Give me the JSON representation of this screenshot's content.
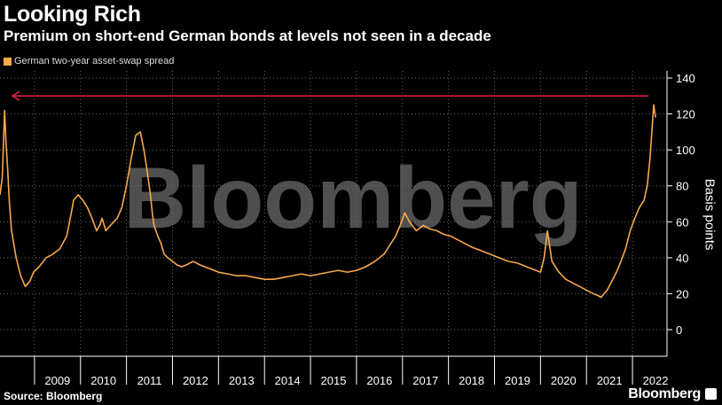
{
  "chart_data": {
    "type": "line",
    "title": "Looking Rich",
    "subtitle": "Premium on short-end German bonds at levels not seen in a decade",
    "legend": [
      "German two-year asset-swap spread"
    ],
    "ylabel": "Basis points",
    "ylim": [
      -10,
      142
    ],
    "y_ticks": [
      0,
      20,
      40,
      60,
      80,
      100,
      120,
      140
    ],
    "x_ticks": [
      "2009",
      "2010",
      "2011",
      "2012",
      "2013",
      "2014",
      "2015",
      "2016",
      "2017",
      "2018",
      "2019",
      "2020",
      "2021",
      "2022"
    ],
    "xlim": [
      2008.25,
      2022.75
    ],
    "series": [
      {
        "name": "German two-year asset-swap spread",
        "color": "#f7a84a",
        "x": [
          2008.25,
          2008.3,
          2008.35,
          2008.38,
          2008.42,
          2008.45,
          2008.5,
          2008.6,
          2008.7,
          2008.8,
          2008.9,
          2008.98,
          2009.1,
          2009.25,
          2009.4,
          2009.55,
          2009.7,
          2009.8,
          2009.85,
          2009.95,
          2010.05,
          2010.15,
          2010.25,
          2010.35,
          2010.42,
          2010.47,
          2010.55,
          2010.65,
          2010.8,
          2010.9,
          2011.0,
          2011.1,
          2011.2,
          2011.3,
          2011.38,
          2011.45,
          2011.52,
          2011.56,
          2011.6,
          2011.68,
          2011.75,
          2011.82,
          2011.9,
          2012.0,
          2012.1,
          2012.2,
          2012.3,
          2012.45,
          2012.6,
          2012.8,
          2013.0,
          2013.2,
          2013.4,
          2013.6,
          2013.8,
          2014.0,
          2014.2,
          2014.4,
          2014.6,
          2014.8,
          2015.0,
          2015.2,
          2015.4,
          2015.6,
          2015.8,
          2016.0,
          2016.2,
          2016.4,
          2016.6,
          2016.75,
          2016.85,
          2016.95,
          2017.05,
          2017.15,
          2017.3,
          2017.45,
          2017.6,
          2017.75,
          2017.9,
          2018.05,
          2018.2,
          2018.35,
          2018.5,
          2018.7,
          2018.9,
          2019.1,
          2019.3,
          2019.5,
          2019.7,
          2019.9,
          2020.0,
          2020.08,
          2020.15,
          2020.25,
          2020.4,
          2020.55,
          2020.7,
          2020.85,
          2021.0,
          2021.15,
          2021.25,
          2021.32,
          2021.38,
          2021.45,
          2021.55,
          2021.65,
          2021.75,
          2021.85,
          2021.95,
          2022.05,
          2022.15,
          2022.25,
          2022.32,
          2022.38,
          2022.42,
          2022.46,
          2022.5
        ],
        "values": [
          75,
          85,
          122,
          105,
          88,
          72,
          55,
          40,
          30,
          24,
          27,
          32,
          35,
          40,
          42,
          45,
          52,
          65,
          72,
          75,
          72,
          68,
          62,
          55,
          58,
          62,
          55,
          58,
          62,
          68,
          80,
          95,
          108,
          110,
          100,
          88,
          75,
          65,
          58,
          52,
          48,
          42,
          40,
          38,
          36,
          35,
          36,
          38,
          36,
          34,
          32,
          31,
          30,
          30,
          29,
          28,
          28,
          29,
          30,
          31,
          30,
          31,
          32,
          33,
          32,
          33,
          35,
          38,
          42,
          48,
          52,
          58,
          65,
          60,
          55,
          58,
          56,
          55,
          53,
          52,
          50,
          48,
          46,
          44,
          42,
          40,
          38,
          37,
          35,
          33,
          32,
          40,
          55,
          38,
          32,
          28,
          26,
          24,
          22,
          20,
          19,
          18,
          20,
          22,
          27,
          32,
          38,
          45,
          55,
          62,
          68,
          72,
          80,
          95,
          110,
          125,
          118
        ]
      }
    ],
    "annotation": "arrow pointing left at 130 basis points, from 2022 back to 2008"
  },
  "watermark": "Bloomberg",
  "source": "Source: Bloomberg",
  "brand": "Bloomberg"
}
